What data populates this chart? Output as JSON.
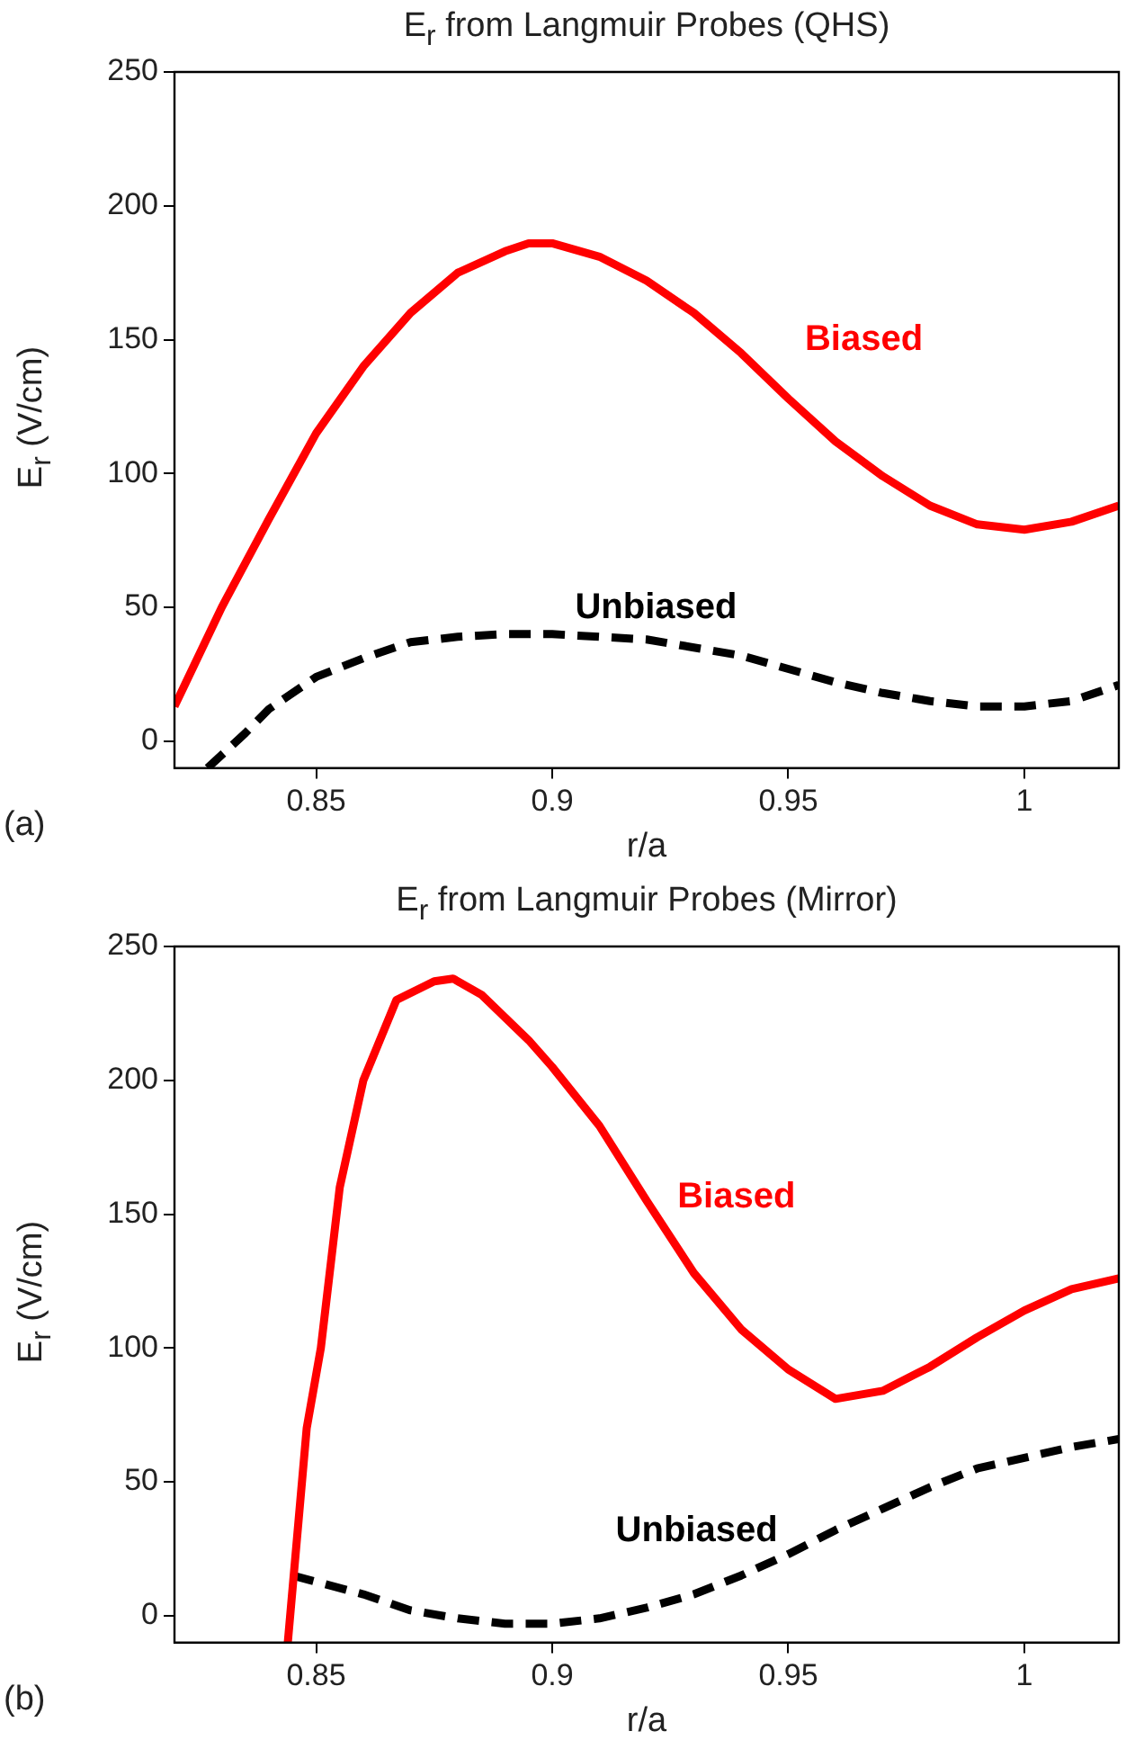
{
  "chart_data": [
    {
      "type": "line",
      "title": "E$_{r}$ from  Langmuir Probes (QHS)",
      "xlabel": "r/a",
      "ylabel": "E$_{r}$ (V/cm)",
      "annotations": [
        "(a)"
      ],
      "xlim": [
        0.82,
        1.02
      ],
      "xticks": [
        0.85,
        0.9,
        0.95,
        1
      ],
      "ylim": [
        -10,
        250
      ],
      "yticks": [
        0,
        50,
        100,
        150,
        200,
        250
      ],
      "grid": false,
      "marker": "none",
      "series": [
        {
          "name": "Biased",
          "color": "#ff0000",
          "line_style": "solid",
          "x": [
            0.82,
            0.83,
            0.84,
            0.85,
            0.86,
            0.87,
            0.88,
            0.89,
            0.895,
            0.9,
            0.91,
            0.92,
            0.93,
            0.94,
            0.95,
            0.96,
            0.97,
            0.98,
            0.99,
            1.0,
            1.01,
            1.02
          ],
          "values": [
            13,
            50,
            83,
            115,
            140,
            160,
            175,
            183,
            186,
            186,
            181,
            172,
            160,
            145,
            128,
            112,
            99,
            88,
            81,
            79,
            82,
            88
          ]
        },
        {
          "name": "Unbiased",
          "color": "#000000",
          "line_style": "dashed",
          "x": [
            0.827,
            0.835,
            0.84,
            0.85,
            0.86,
            0.87,
            0.88,
            0.89,
            0.9,
            0.91,
            0.92,
            0.93,
            0.94,
            0.95,
            0.96,
            0.97,
            0.98,
            0.99,
            1.0,
            1.01,
            1.02
          ],
          "values": [
            -10,
            3,
            12,
            24,
            31,
            37,
            39,
            40,
            40,
            39,
            38,
            35,
            32,
            27,
            22,
            18,
            15,
            13,
            13,
            15,
            21
          ]
        }
      ]
    },
    {
      "type": "line",
      "title": "E$_{r}$ from  Langmuir Probes (Mirror)",
      "xlabel": "r/a",
      "ylabel": "E$_{r}$ (V/cm)",
      "annotations": [
        "(b)"
      ],
      "xlim": [
        0.82,
        1.02
      ],
      "xticks": [
        0.85,
        0.9,
        0.95,
        1
      ],
      "ylim": [
        -10,
        250
      ],
      "yticks": [
        0,
        50,
        100,
        150,
        200,
        250
      ],
      "grid": false,
      "marker": "none",
      "series": [
        {
          "name": "Biased",
          "color": "#ff0000",
          "line_style": "solid",
          "x": [
            0.844,
            0.845,
            0.848,
            0.851,
            0.855,
            0.86,
            0.867,
            0.875,
            0.879,
            0.885,
            0.895,
            0.9,
            0.91,
            0.92,
            0.93,
            0.94,
            0.95,
            0.96,
            0.97,
            0.98,
            0.99,
            1.0,
            1.01,
            1.02
          ],
          "values": [
            -10,
            10,
            70,
            100,
            160,
            200,
            230,
            237,
            238,
            232,
            215,
            205,
            183,
            155,
            128,
            107,
            92,
            81,
            84,
            93,
            104,
            114,
            122,
            126
          ]
        },
        {
          "name": "Unbiased",
          "color": "#000000",
          "line_style": "dashed",
          "x": [
            0.845,
            0.86,
            0.87,
            0.88,
            0.89,
            0.9,
            0.91,
            0.92,
            0.93,
            0.94,
            0.95,
            0.96,
            0.97,
            0.98,
            0.99,
            1.0,
            1.01,
            1.02
          ],
          "values": [
            15,
            8,
            2,
            -1,
            -3,
            -3,
            -1,
            3,
            8,
            15,
            23,
            32,
            40,
            48,
            55,
            59,
            63,
            66
          ]
        }
      ]
    }
  ]
}
